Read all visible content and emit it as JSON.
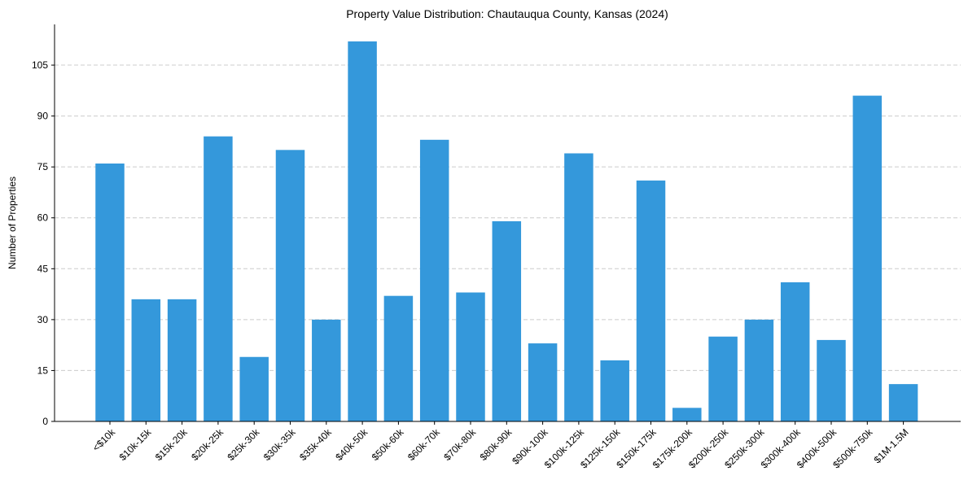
{
  "chart_data": {
    "type": "bar",
    "title": "Property Value Distribution: Chautauqua County, Kansas (2024)",
    "xlabel": "",
    "ylabel": "Number of Properties",
    "ylim": [
      0,
      117
    ],
    "yticks": [
      0,
      15,
      30,
      45,
      60,
      75,
      90,
      105
    ],
    "grid": "y-dashed",
    "bar_color": "#3498db",
    "categories": [
      "<$10k",
      "$10k-15k",
      "$15k-20k",
      "$20k-25k",
      "$25k-30k",
      "$30k-35k",
      "$35k-40k",
      "$40k-50k",
      "$50k-60k",
      "$60k-70k",
      "$70k-80k",
      "$80k-90k",
      "$90k-100k",
      "$100k-125k",
      "$125k-150k",
      "$150k-175k",
      "$175k-200k",
      "$200k-250k",
      "$250k-300k",
      "$300k-400k",
      "$400k-500k",
      "$500k-750k",
      "$1M-1.5M"
    ],
    "values": [
      76,
      36,
      36,
      84,
      19,
      80,
      30,
      112,
      37,
      83,
      38,
      59,
      23,
      79,
      18,
      71,
      4,
      25,
      30,
      41,
      24,
      96,
      11
    ]
  }
}
